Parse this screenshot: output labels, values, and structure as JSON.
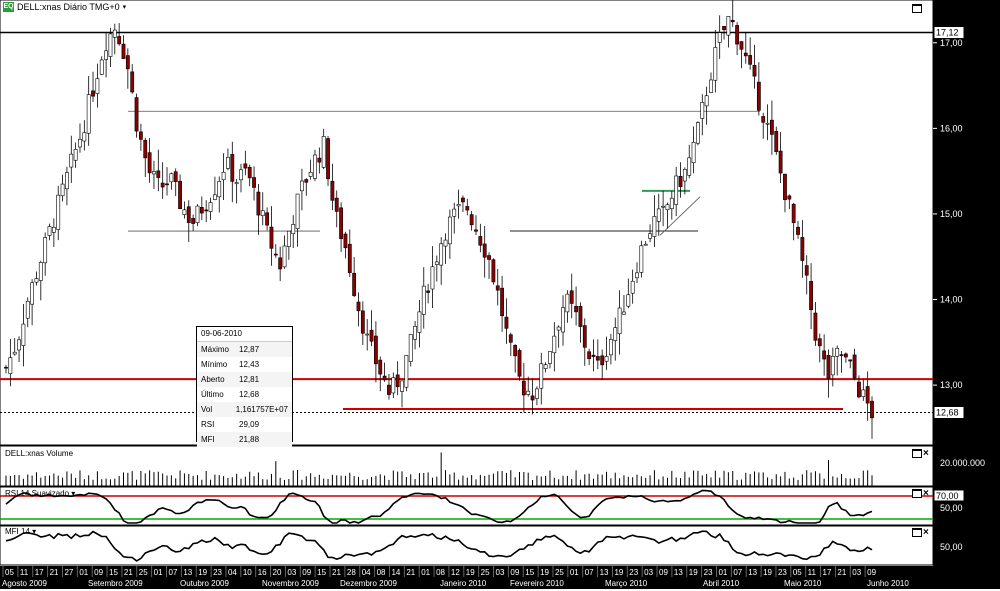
{
  "header": {
    "symbol_icon": "EQ",
    "title": "DELL:xnas Diário TMG+0",
    "dropdown_icon": "chevron-down-icon"
  },
  "volume_panel": {
    "title": "DELL:xnas Volume",
    "axis_label": "20.000.000"
  },
  "rsi_panel": {
    "title": "RSI 14 Suavizado",
    "level_high": "70,00",
    "level_mid": "50,00"
  },
  "mfi_panel": {
    "title": "MFI 14",
    "axis_label": "50,00"
  },
  "price_axis": {
    "ticks": [
      "17,00",
      "16,00",
      "15,00",
      "14,00",
      "13,00"
    ],
    "badges": [
      "17,12",
      "12,68"
    ]
  },
  "tooltip": {
    "date": "09-06-2010",
    "rows": [
      {
        "key": "Máximo",
        "value": "12,87"
      },
      {
        "key": "Mínimo",
        "value": "12,43"
      },
      {
        "key": "Aberto",
        "value": "12,81"
      },
      {
        "key": "Último",
        "value": "12,68"
      },
      {
        "key": "Vol",
        "value": "1,161757E+07"
      },
      {
        "key": "RSI",
        "value": "29,09"
      },
      {
        "key": "MFI",
        "value": "21,88"
      }
    ]
  },
  "colors": {
    "up_candle": "#ffffff",
    "down_candle": "#8b0000",
    "support_line": "#cc0000",
    "rsi_low_line": "#00aa00",
    "rsi_high_line": "#cc0000",
    "axis_bg": "#000000"
  },
  "chart_data": {
    "type": "candlestick",
    "x_axis": {
      "days": [
        "05",
        "11",
        "17",
        "21",
        "27",
        "01",
        "09",
        "15",
        "21",
        "25",
        "01",
        "07",
        "13",
        "19",
        "23",
        "04",
        "10",
        "16",
        "20",
        "03",
        "09",
        "15",
        "21",
        "28",
        "04",
        "08",
        "14",
        "21",
        "01",
        "08",
        "12",
        "19",
        "25",
        "03",
        "09",
        "15",
        "19",
        "25",
        "01",
        "07",
        "13",
        "19",
        "23",
        "03",
        "09",
        "13",
        "19",
        "23",
        "01",
        "07",
        "13",
        "19",
        "23",
        "05",
        "11",
        "17",
        "21",
        "03",
        "09"
      ],
      "months": [
        "Agosto 2009",
        "Setembro 2009",
        "Outubro 2009",
        "Novembro 2009",
        "Dezembro 2009",
        "Janeiro 2010",
        "Fevereiro 2010",
        "Março 2010",
        "Abril 2010",
        "Maio 2010",
        "Junho 2010"
      ]
    },
    "y_axis": {
      "ylim": [
        12.3,
        17.5
      ],
      "ticks": [
        13,
        14,
        15,
        16,
        17
      ]
    },
    "levels": {
      "resistance_high": 17.12,
      "range_top": 16.2,
      "range_bottom": 14.8,
      "support": 13.07,
      "support_low": 12.72,
      "last_price": 12.68,
      "green_segment": 15.27,
      "black_segment": 14.8
    },
    "close_path": [
      13.2,
      13.5,
      14.0,
      14.4,
      14.8,
      15.2,
      15.6,
      16.0,
      16.5,
      17.0,
      17.2,
      16.8,
      16.0,
      15.5,
      15.3,
      15.4,
      15.1,
      14.9,
      15.1,
      15.3,
      15.6,
      15.4,
      15.5,
      15.1,
      14.7,
      14.4,
      14.9,
      15.3,
      15.6,
      15.8,
      15.0,
      14.6,
      14.0,
      13.5,
      13.2,
      12.9,
      13.1,
      13.5,
      14.0,
      14.4,
      14.8,
      15.0,
      15.1,
      14.8,
      14.5,
      14.0,
      13.4,
      13.0,
      12.9,
      13.2,
      13.6,
      14.0,
      13.8,
      13.4,
      13.2,
      13.5,
      13.8,
      14.2,
      14.6,
      14.9,
      15.0,
      15.3,
      15.5,
      15.9,
      16.5,
      17.0,
      17.3,
      17.0,
      16.6,
      16.2,
      15.8,
      15.3,
      14.8,
      14.2,
      13.5,
      13.1,
      13.4,
      13.2,
      12.9,
      12.68
    ],
    "volume": {
      "label": "DELL:xnas Volume"
    },
    "rsi": {
      "period": 14,
      "levels": [
        70,
        50
      ]
    },
    "mfi": {
      "period": 14,
      "level": 50
    }
  }
}
